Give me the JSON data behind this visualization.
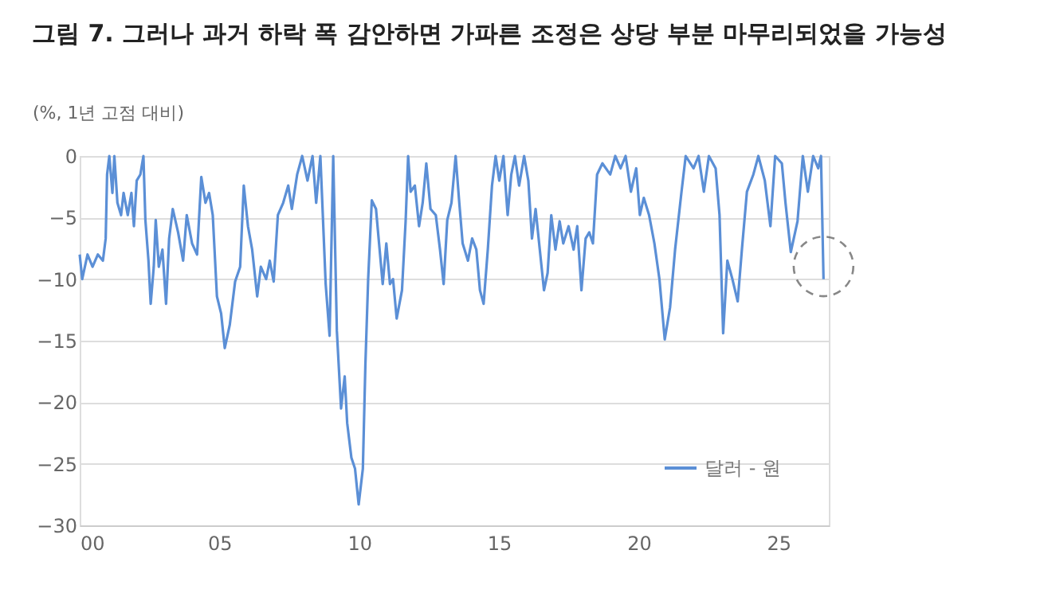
{
  "chart_data": {
    "type": "line",
    "title": "그림 7.  그러나 과거 하락 폭 감안하면 가파른 조정은 상당 부분 마무리되었을 가능성",
    "ylabel": "(%, 1년 고점 대비)",
    "x": [
      0.0,
      0.09,
      0.28,
      0.46,
      0.65,
      0.83,
      0.93,
      0.98,
      1.06,
      1.17,
      1.24,
      1.35,
      1.48,
      1.57,
      1.72,
      1.85,
      1.94,
      2.04,
      2.17,
      2.28,
      2.35,
      2.46,
      2.54,
      2.65,
      2.72,
      2.83,
      2.96,
      3.09,
      3.2,
      3.33,
      3.52,
      3.7,
      3.83,
      4.02,
      4.2,
      4.35,
      4.5,
      4.63,
      4.76,
      4.91,
      5.06,
      5.19,
      5.37,
      5.56,
      5.74,
      5.87,
      6.02,
      6.17,
      6.35,
      6.48,
      6.67,
      6.8,
      6.94,
      7.09,
      7.28,
      7.46,
      7.59,
      7.78,
      7.96,
      8.15,
      8.33,
      8.46,
      8.61,
      8.8,
      8.94,
      9.07,
      9.2,
      9.35,
      9.48,
      9.57,
      9.72,
      9.85,
      9.98,
      10.13,
      10.22,
      10.32,
      10.45,
      10.6,
      10.73,
      10.84,
      10.97,
      11.1,
      11.21,
      11.34,
      11.53,
      11.66,
      11.75,
      11.84,
      11.99,
      12.14,
      12.27,
      12.4,
      12.55,
      12.74,
      12.89,
      13.02,
      13.15,
      13.3,
      13.45,
      13.58,
      13.7,
      13.89,
      14.04,
      14.19,
      14.32,
      14.45,
      14.6,
      14.75,
      14.88,
      15.01,
      15.16,
      15.31,
      15.44,
      15.57,
      15.72,
      15.9,
      16.05,
      16.18,
      16.31,
      16.46,
      16.61,
      16.74,
      16.87,
      17.02,
      17.17,
      17.3,
      17.49,
      17.67,
      17.8,
      17.95,
      18.1,
      18.23,
      18.36,
      18.51,
      18.7,
      18.98,
      19.16,
      19.35,
      19.53,
      19.72,
      19.91,
      20.04,
      20.18,
      20.37,
      20.56,
      20.74,
      20.93,
      21.12,
      21.3,
      21.53,
      21.68,
      21.96,
      22.14,
      22.33,
      22.51,
      22.75,
      22.89,
      23.02,
      23.17,
      23.35,
      23.54,
      23.69,
      23.87,
      24.1,
      24.28,
      24.51,
      24.71,
      24.88,
      25.12,
      25.25,
      25.44,
      25.68,
      25.87,
      26.05,
      26.24,
      26.42,
      26.52,
      26.61
    ],
    "series": [
      {
        "name": "달러 - 원",
        "color": "#5b8fd6",
        "values": [
          -8,
          -10,
          -8,
          -9,
          -8,
          -8.5,
          -6.7,
          -1.5,
          0,
          -3,
          0,
          -3.8,
          -4.8,
          -3,
          -4.8,
          -3,
          -5.7,
          -2,
          -1.5,
          0,
          -5.2,
          -8.5,
          -12,
          -9,
          -5.2,
          -9,
          -7.6,
          -12,
          -6.7,
          -4.3,
          -6.2,
          -8.5,
          -4.8,
          -7.1,
          -8,
          -1.7,
          -3.8,
          -3,
          -4.8,
          -11.4,
          -12.8,
          -15.6,
          -13.7,
          -10.2,
          -9,
          -2.4,
          -5.7,
          -7.6,
          -11.4,
          -9,
          -10,
          -8.5,
          -10.2,
          -4.8,
          -3.8,
          -2.4,
          -4.3,
          -1.5,
          0,
          -2,
          0,
          -3.8,
          0,
          -10.4,
          -14.6,
          0,
          -14.2,
          -20.5,
          -17.9,
          -21.7,
          -24.5,
          -25.4,
          -28.3,
          -25.4,
          -17,
          -10,
          -3.6,
          -4.3,
          -7.6,
          -10.4,
          -7.1,
          -10.4,
          -10,
          -13.2,
          -10.9,
          -5.3,
          0,
          -2.9,
          -2.4,
          -5.7,
          -3.8,
          -0.6,
          -4.3,
          -4.8,
          -7.6,
          -10.4,
          -5.2,
          -3.8,
          0,
          -3.8,
          -7.1,
          -8.5,
          -6.7,
          -7.6,
          -10.9,
          -12,
          -7.6,
          -2.4,
          0,
          -2,
          0,
          -4.8,
          -1.5,
          0,
          -2.4,
          0,
          -2,
          -6.7,
          -4.3,
          -7.6,
          -10.9,
          -9.5,
          -4.8,
          -7.6,
          -5.3,
          -7.1,
          -5.7,
          -7.6,
          -5.7,
          -10.9,
          -6.7,
          -6.2,
          -7.1,
          -1.5,
          -0.6,
          -1.5,
          0,
          -1,
          0,
          -2.9,
          -1,
          -4.8,
          -3.4,
          -4.8,
          -7.1,
          -10,
          -14.9,
          -12.3,
          -7.6,
          -2.9,
          0,
          -1,
          0,
          -2.9,
          0,
          -1,
          -4.8,
          -14.4,
          -8.5,
          -10,
          -11.8,
          -7.6,
          -2.9,
          -1.5,
          0,
          -2,
          -5.7,
          0,
          -0.6,
          -3.8,
          -7.8,
          -5.3,
          0,
          -2.9,
          0,
          -1,
          0,
          -10
        ]
      }
    ],
    "xlim": [
      0,
      26.8
    ],
    "xticks": [
      {
        "value": 0,
        "label": "00"
      },
      {
        "value": 5,
        "label": "05"
      },
      {
        "value": 10,
        "label": "10"
      },
      {
        "value": 15,
        "label": "15"
      },
      {
        "value": 20,
        "label": "20"
      },
      {
        "value": 25,
        "label": "25"
      }
    ],
    "ylim": [
      -30,
      0
    ],
    "yticks": [
      0,
      -5,
      -10,
      -15,
      -20,
      -25,
      -30
    ],
    "grid": "y",
    "legend": "bottom right",
    "marker": "none",
    "line_style": "solid"
  }
}
